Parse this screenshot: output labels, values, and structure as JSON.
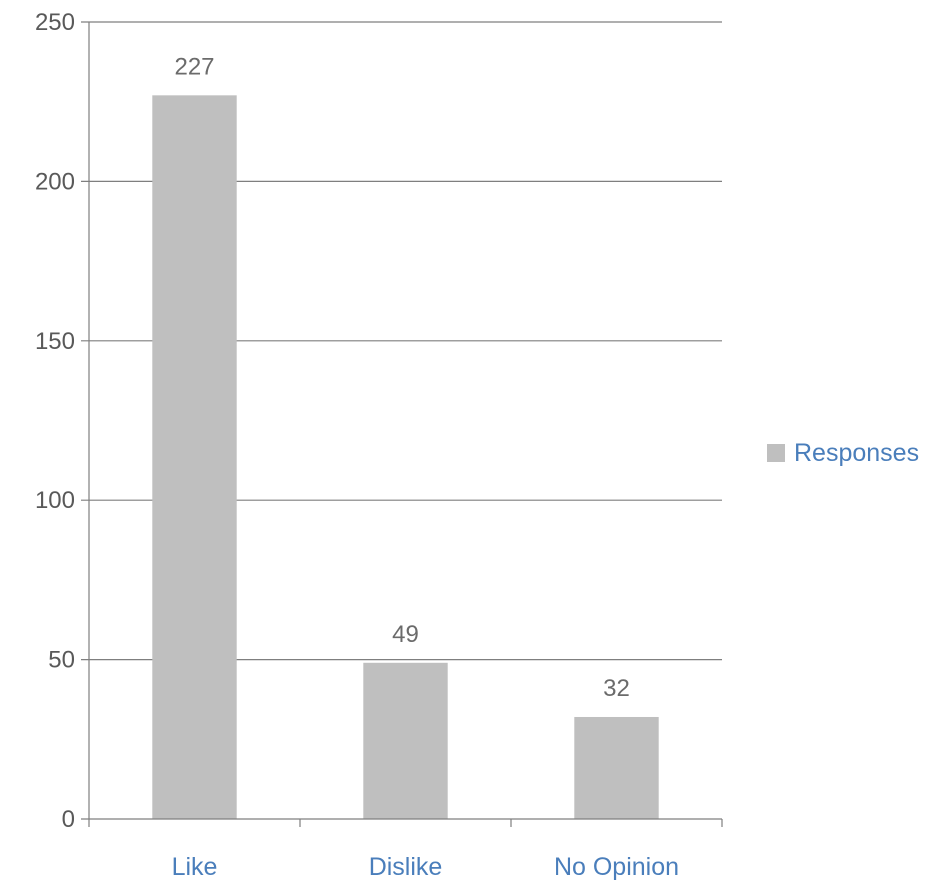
{
  "chart_data": {
    "type": "bar",
    "categories": [
      "Like",
      "Dislike",
      "No Opinion"
    ],
    "series": [
      {
        "name": "Responses",
        "values": [
          227,
          49,
          32
        ]
      }
    ],
    "y_ticks": [
      "0",
      "50",
      "100",
      "150",
      "200",
      "250"
    ],
    "data_labels": [
      "227",
      "49",
      "32"
    ],
    "ylim": [
      0,
      250
    ],
    "grid": true,
    "legend_position": "right",
    "colors": {
      "bar": "#bfbfbf",
      "gridline": "#7f7f7f",
      "axis": "#7f7f7f",
      "category_text": "#4a7ebb",
      "legend_text": "#4a7ebb",
      "tick_text": "#595959",
      "data_label_text": "#6b6b6b"
    }
  }
}
